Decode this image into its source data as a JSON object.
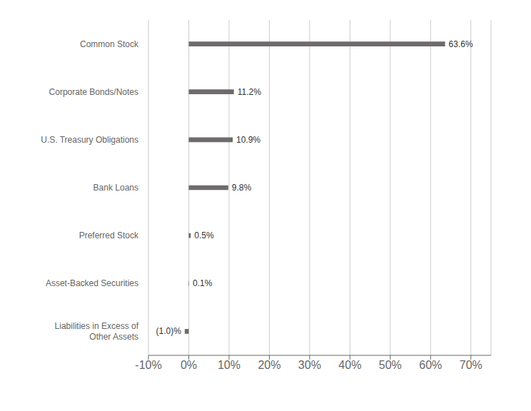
{
  "chart_data": {
    "type": "bar",
    "orientation": "horizontal",
    "categories": [
      "Common Stock",
      "Corporate Bonds/Notes",
      "U.S. Treasury Obligations",
      "Bank Loans",
      "Preferred Stock",
      "Asset-Backed Securities",
      "Liabilities in Excess of\nOther Assets"
    ],
    "values": [
      63.6,
      11.2,
      10.9,
      9.8,
      0.5,
      0.1,
      -1.0
    ],
    "value_labels": [
      "63.6%",
      "11.2%",
      "10.9%",
      "9.8%",
      "0.5%",
      "0.1%",
      "(1.0)%"
    ],
    "color": "#706b6b",
    "xlim": [
      -10,
      75
    ],
    "xticks": [
      {
        "value": -10,
        "label": "-10%"
      },
      {
        "value": 0,
        "label": "0%"
      },
      {
        "value": 10,
        "label": "10%"
      },
      {
        "value": 20,
        "label": "20%"
      },
      {
        "value": 30,
        "label": "30%"
      },
      {
        "value": 40,
        "label": "40%"
      },
      {
        "value": 50,
        "label": "50%"
      },
      {
        "value": 60,
        "label": "60%"
      },
      {
        "value": 70,
        "label": "70%"
      }
    ],
    "grid": true,
    "data_labels": true
  }
}
